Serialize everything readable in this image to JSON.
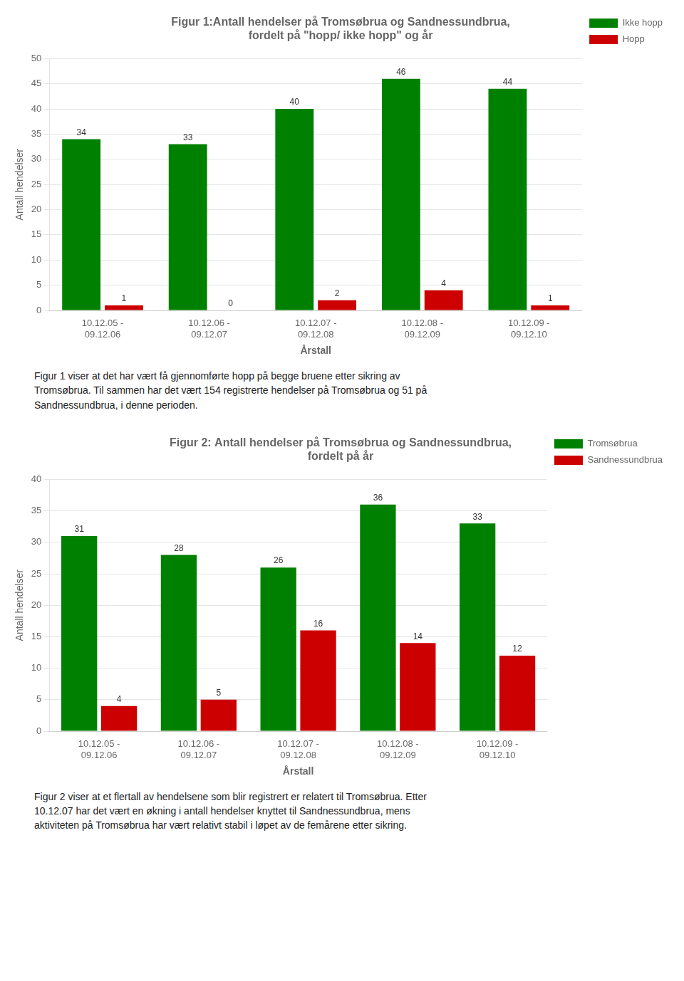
{
  "chart_data": [
    {
      "type": "bar",
      "title": "Figur 1:Antall hendelser på Tromsøbrua og Sandnessundbrua,\nfordelt på \"hopp/ ikke hopp\" og år",
      "categories": [
        "10.12.05 -\n09.12.06",
        "10.12.06 -\n09.12.07",
        "10.12.07 -\n09.12.08",
        "10.12.08 -\n09.12.09",
        "10.12.09 -\n09.12.10"
      ],
      "series": [
        {
          "name": "Ikke hopp",
          "color": "#008000",
          "values": [
            34,
            33,
            40,
            46,
            44
          ]
        },
        {
          "name": "Hopp",
          "color": "#CC0000",
          "values": [
            1,
            0,
            2,
            4,
            1
          ]
        }
      ],
      "xlabel": "Årstall",
      "ylabel": "Antall hendelser",
      "ylim": [
        0,
        50
      ],
      "yticks": [
        0,
        5,
        10,
        15,
        20,
        25,
        30,
        35,
        40,
        45,
        50
      ],
      "grid": true,
      "legend": "right",
      "data_labels": true,
      "annotations": [
        "Figur 1 viser at det har vært få gjennomførte hopp på begge bruene etter sikring av\nTromsøbrua. Til sammen har det vært 154 registrerte hendelser på Tromsøbrua og 51 på\nSandnessundbrua, i denne perioden."
      ]
    },
    {
      "type": "bar",
      "title": "Figur 2: Antall hendelser på Tromsøbrua og Sandnessundbrua,\nfordelt på år",
      "categories": [
        "10.12.05 -\n09.12.06",
        "10.12.06 -\n09.12.07",
        "10.12.07 -\n09.12.08",
        "10.12.08 -\n09.12.09",
        "10.12.09 -\n09.12.10"
      ],
      "series": [
        {
          "name": "Tromsøbrua",
          "color": "#008000",
          "values": [
            31,
            28,
            26,
            36,
            33
          ]
        },
        {
          "name": "Sandnessundbrua",
          "color": "#CC0000",
          "values": [
            4,
            5,
            16,
            14,
            12
          ]
        }
      ],
      "xlabel": "Årstall",
      "ylabel": "Antall hendelser",
      "ylim": [
        0,
        40
      ],
      "yticks": [
        0,
        5,
        10,
        15,
        20,
        25,
        30,
        35,
        40
      ],
      "grid": true,
      "legend": "right",
      "data_labels": true,
      "annotations": [
        "Figur 2 viser at et flertall av hendelsene som blir registrert er relatert til Tromsøbrua. Etter\n10.12.07 har det vært en økning i antall hendelser knyttet til Sandnessundbrua, mens\naktiviteten på Tromsøbrua har vært relativt stabil i løpet av de femårene etter sikring."
      ]
    }
  ]
}
